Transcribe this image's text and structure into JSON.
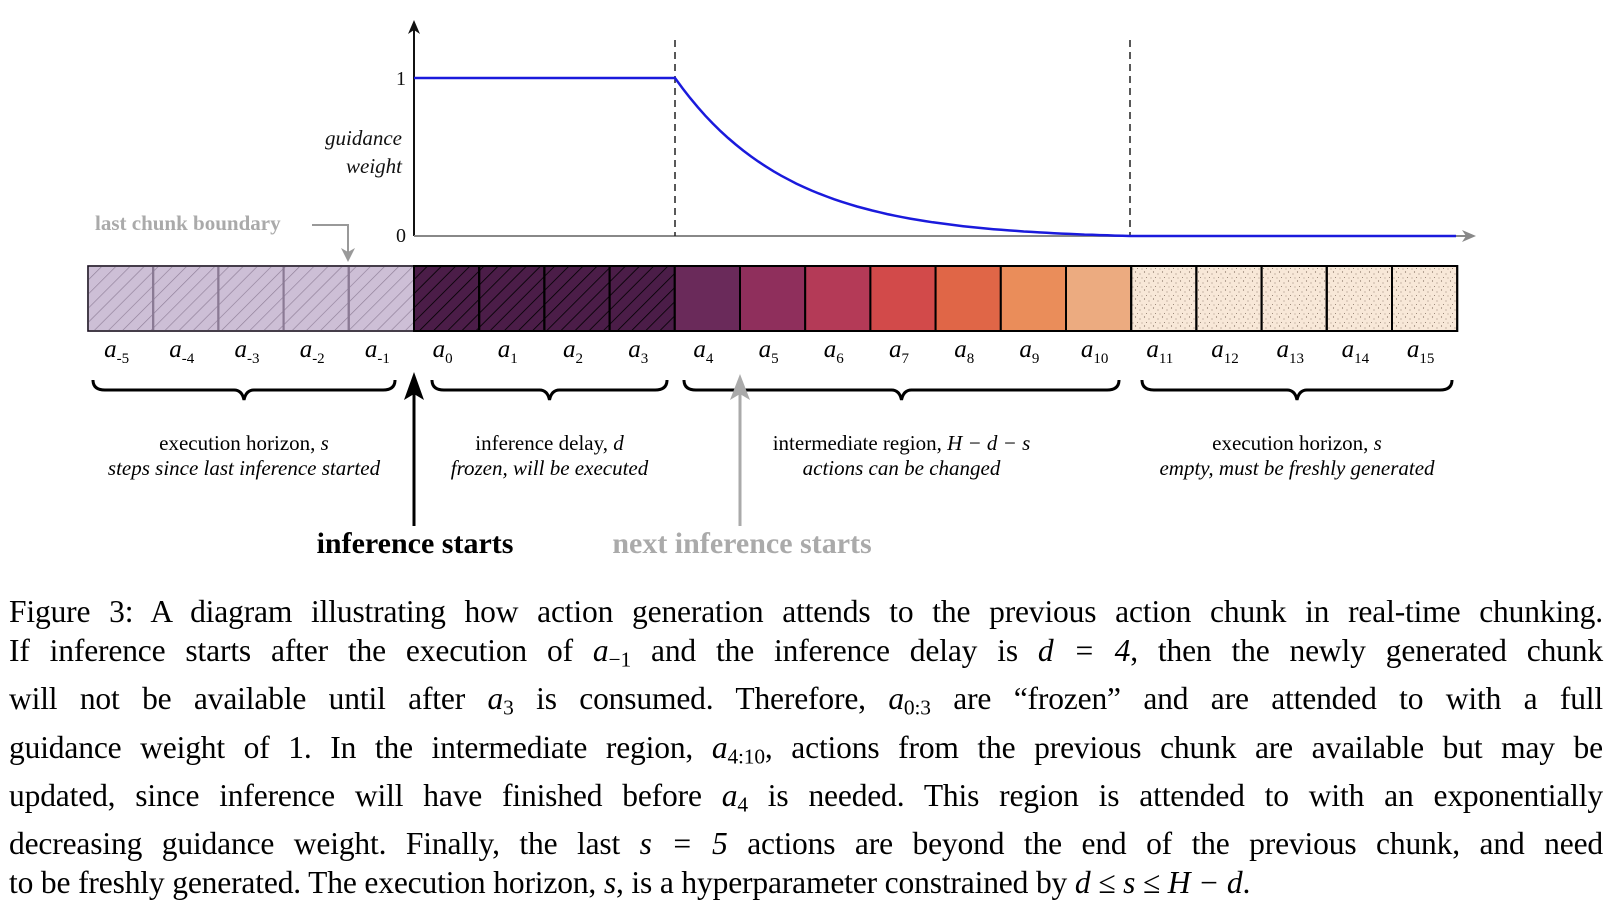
{
  "figure": {
    "y_axis": {
      "label_line1": "guidance",
      "label_line2": "weight",
      "tick_top": "1",
      "tick_bottom": "0"
    },
    "last_chunk_boundary": "last chunk boundary",
    "colors": {
      "curve": "#1a1adc",
      "prev_chunk_fill": "#cdbfd6",
      "frozen_fill": "#4b1d48",
      "empty_fill": "#f8e8d8",
      "gray_text": "#aaaaaa"
    },
    "cells": [
      {
        "base": "a",
        "sub": "-5",
        "fill": "#cdbfd6"
      },
      {
        "base": "a",
        "sub": "-4",
        "fill": "#cdbfd6"
      },
      {
        "base": "a",
        "sub": "-3",
        "fill": "#cdbfd6"
      },
      {
        "base": "a",
        "sub": "-2",
        "fill": "#cdbfd6"
      },
      {
        "base": "a",
        "sub": "-1",
        "fill": "#cdbfd6"
      },
      {
        "base": "a",
        "sub": "0",
        "fill": "#4b1d48"
      },
      {
        "base": "a",
        "sub": "1",
        "fill": "#4b1d48"
      },
      {
        "base": "a",
        "sub": "2",
        "fill": "#4b1d48"
      },
      {
        "base": "a",
        "sub": "3",
        "fill": "#4b1d48"
      },
      {
        "base": "a",
        "sub": "4",
        "fill": "#6a2a5a"
      },
      {
        "base": "a",
        "sub": "5",
        "fill": "#8f2f5c"
      },
      {
        "base": "a",
        "sub": "6",
        "fill": "#b43a57"
      },
      {
        "base": "a",
        "sub": "7",
        "fill": "#d24a4a"
      },
      {
        "base": "a",
        "sub": "8",
        "fill": "#e06647"
      },
      {
        "base": "a",
        "sub": "9",
        "fill": "#ea8d5a"
      },
      {
        "base": "a",
        "sub": "10",
        "fill": "#ecab80"
      },
      {
        "base": "a",
        "sub": "11",
        "fill": "#f8e8d8"
      },
      {
        "base": "a",
        "sub": "12",
        "fill": "#f8e8d8"
      },
      {
        "base": "a",
        "sub": "13",
        "fill": "#f8e8d8"
      },
      {
        "base": "a",
        "sub": "14",
        "fill": "#f8e8d8"
      },
      {
        "base": "a",
        "sub": "15",
        "fill": "#f8e8d8"
      }
    ],
    "regions": [
      {
        "title": "execution horizon, ",
        "var": "s",
        "desc": "steps since last inference started"
      },
      {
        "title": "inference delay, ",
        "var": "d",
        "desc": "frozen, will be executed"
      },
      {
        "title": "intermediate region, ",
        "var": "H − d − s",
        "desc": "actions can be changed"
      },
      {
        "title": "execution horizon, ",
        "var": "s",
        "desc": "empty, must be freshly generated"
      }
    ],
    "inference_starts": "inference starts",
    "next_inference_starts": "next inference starts"
  },
  "caption": {
    "l1": "Figure 3: A diagram illustrating how action generation attends to the previous action chunk in real-time chunking.",
    "l2a": "If inference starts after the execution of ",
    "l2b": " and the inference delay is ",
    "l2c": ", then the newly generated chunk",
    "l3a": "will not be available until after ",
    "l3b": " is consumed. Therefore, ",
    "l3c": " are “frozen” and are attended to with a full",
    "l4a": "guidance weight of 1. In the intermediate region, ",
    "l4b": ", actions from the previous chunk are available but may be",
    "l5a": "updated, since inference will have finished before ",
    "l5b": " is needed. This region is attended to with an exponentially",
    "l6a": "decreasing guidance weight. Finally, the last ",
    "l6b": " actions are beyond the end of the previous chunk, and need",
    "l7a": "to be freshly generated. The execution horizon, ",
    "l7b": ", is a hyperparameter constrained by ",
    "l7c": ".",
    "math": {
      "a_neg1_base": "a",
      "a_neg1_sub": "−1",
      "d_eq": "d = 4",
      "a3_base": "a",
      "a3_sub": "3",
      "a03_base": "a",
      "a03_sub": "0:3",
      "a410_base": "a",
      "a410_sub": "4:10",
      "a4_base": "a",
      "a4_sub": "4",
      "s_eq": "s = 5",
      "s": "s",
      "constraint": "d ≤ s ≤ H − d"
    }
  }
}
